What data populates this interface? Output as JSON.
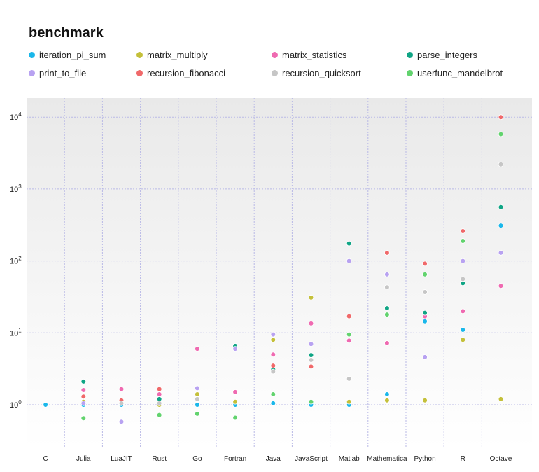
{
  "chart_data": {
    "type": "scatter",
    "yscale": "log",
    "legend_title": "benchmark",
    "legend_position": "top",
    "categories": [
      "C",
      "Julia",
      "LuaJIT",
      "Rust",
      "Go",
      "Fortran",
      "Java",
      "JavaScript",
      "Matlab",
      "Mathematica",
      "Python",
      "R",
      "Octave"
    ],
    "ylim": [
      0.25,
      18000
    ],
    "yticks": [
      {
        "value": 1,
        "base": "10",
        "exp": "0"
      },
      {
        "value": 10,
        "base": "10",
        "exp": "1"
      },
      {
        "value": 100,
        "base": "10",
        "exp": "2"
      },
      {
        "value": 1000,
        "base": "10",
        "exp": "3"
      },
      {
        "value": 10000,
        "base": "10",
        "exp": "4"
      }
    ],
    "series": [
      {
        "name": "iteration_pi_sum",
        "color": "#1ab7ea",
        "values": [
          1.0,
          1.0,
          1.0,
          1.0,
          1.0,
          1.0,
          1.05,
          1.0,
          1.0,
          1.4,
          14.5,
          11,
          310
        ]
      },
      {
        "name": "matrix_multiply",
        "color": "#c4c03a",
        "values": [
          null,
          1.1,
          1.1,
          1.0,
          1.4,
          1.1,
          8,
          31,
          1.1,
          1.15,
          1.15,
          8,
          1.2
        ]
      },
      {
        "name": "matrix_statistics",
        "color": "#ef6ab1",
        "values": [
          null,
          1.6,
          1.65,
          1.4,
          6,
          1.5,
          5,
          13.5,
          7.8,
          7.2,
          17,
          20,
          45
        ]
      },
      {
        "name": "parse_integers",
        "color": "#10a585",
        "values": [
          null,
          2.1,
          null,
          1.2,
          null,
          6.6,
          3.1,
          4.9,
          175,
          22,
          19,
          49,
          560
        ]
      },
      {
        "name": "print_to_file",
        "color": "#b8a2f1",
        "values": [
          null,
          1.05,
          0.58,
          1.05,
          1.7,
          6,
          9.5,
          7,
          100,
          65,
          4.6,
          100,
          130
        ]
      },
      {
        "name": "recursion_fibonacci",
        "color": "#f0696a",
        "values": [
          null,
          1.3,
          1.15,
          1.65,
          null,
          null,
          3.5,
          3.4,
          17,
          130,
          92,
          260,
          10000
        ]
      },
      {
        "name": "recursion_quicksort",
        "color": "#c6c6c6",
        "values": [
          null,
          null,
          1.05,
          1.05,
          1.2,
          null,
          2.9,
          4.2,
          2.3,
          43,
          37,
          56,
          2200
        ]
      },
      {
        "name": "userfunc_mandelbrot",
        "color": "#62d36e",
        "values": [
          null,
          0.65,
          null,
          0.72,
          0.75,
          0.66,
          1.4,
          1.1,
          9.5,
          18,
          65,
          190,
          5800
        ]
      }
    ]
  }
}
